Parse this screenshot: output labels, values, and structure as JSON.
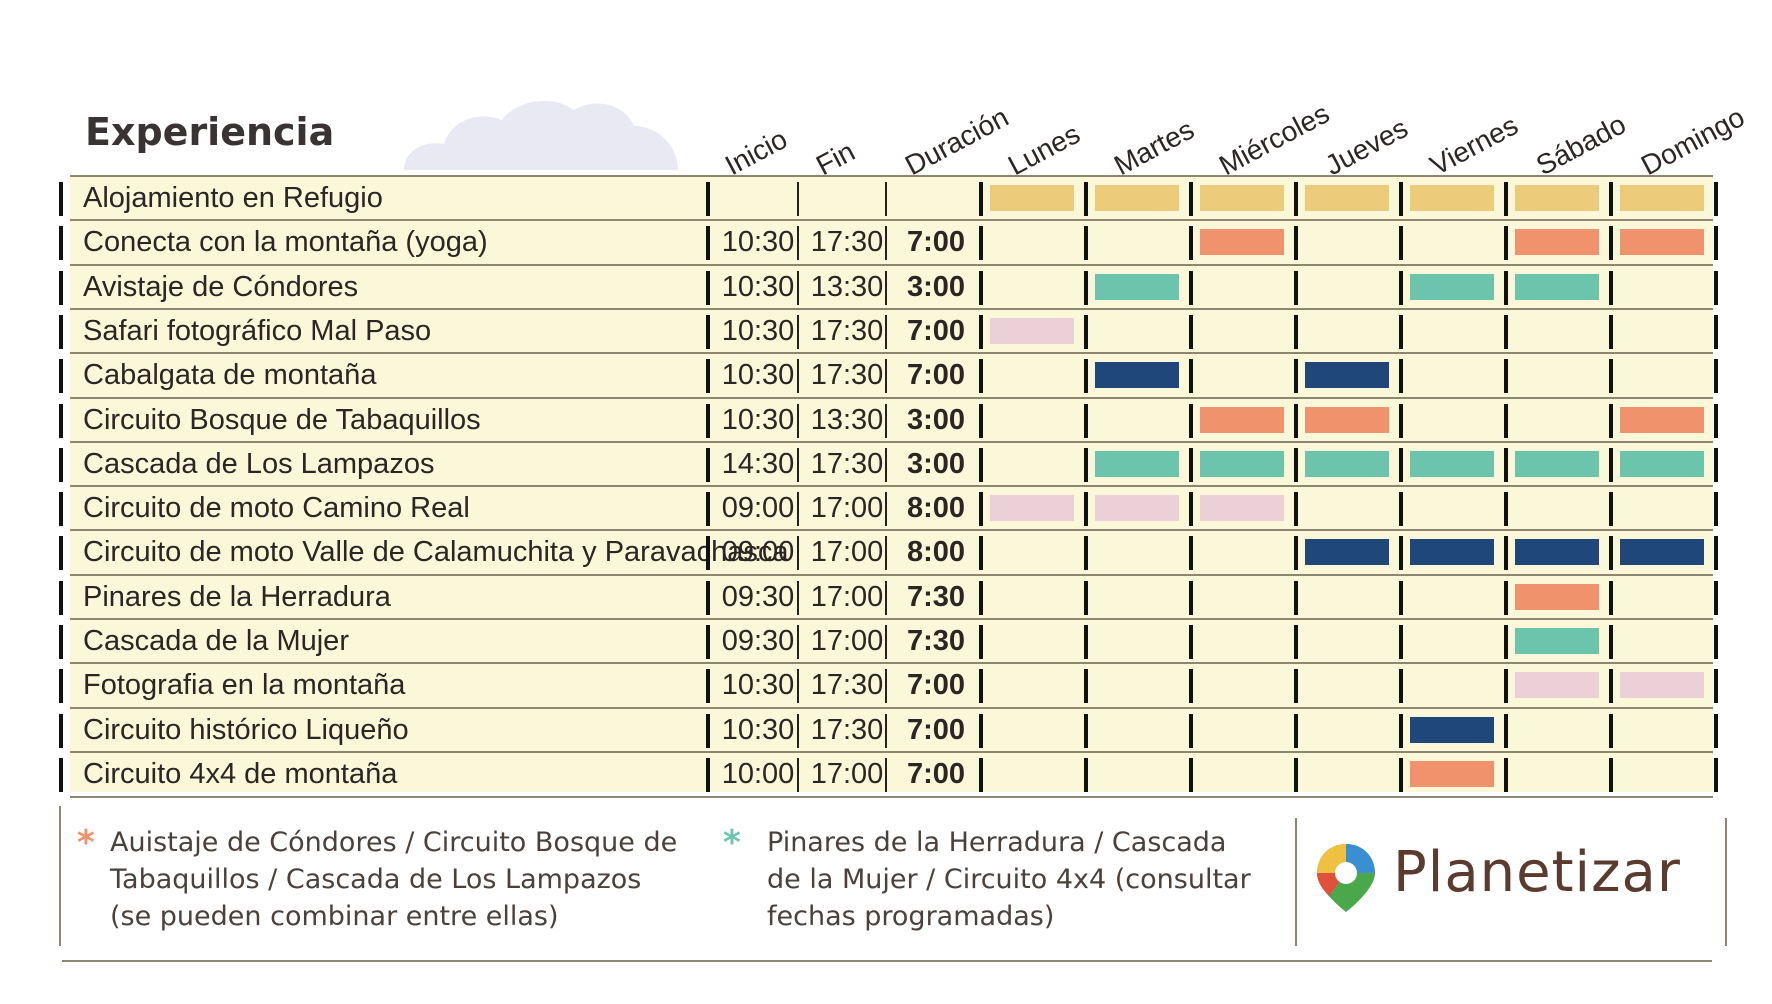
{
  "header": {
    "title": "Experiencia",
    "columns": [
      "Inicio",
      "Fin",
      "Duración"
    ],
    "days": [
      "Lunes",
      "Martes",
      "Miércoles",
      "Jueves",
      "Viernes",
      "Sábado",
      "Domingo"
    ]
  },
  "colors": {
    "yellow": "#eccb7a",
    "orange": "#f0926b",
    "teal": "#6cc4ad",
    "navy": "#1f477a",
    "pink": "#ecd0d7",
    "table_bg": "#fbf7d9"
  },
  "rows": [
    {
      "name": "Alojamiento en Refugio",
      "start": "",
      "end": "",
      "duration": "",
      "days": [
        "yellow",
        "yellow",
        "yellow",
        "yellow",
        "yellow",
        "yellow",
        "yellow"
      ]
    },
    {
      "name": "Conecta con la montaña (yoga)",
      "start": "10:30",
      "end": "17:30",
      "duration": "7:00",
      "days": [
        "",
        "",
        "orange",
        "",
        "",
        "orange",
        "orange"
      ]
    },
    {
      "name": "Avistaje de Cóndores",
      "start": "10:30",
      "end": "13:30",
      "duration": "3:00",
      "days": [
        "",
        "teal",
        "",
        "",
        "teal",
        "teal",
        ""
      ]
    },
    {
      "name": "Safari fotográfico Mal Paso",
      "start": "10:30",
      "end": "17:30",
      "duration": "7:00",
      "days": [
        "pink",
        "",
        "",
        "",
        "",
        "",
        ""
      ]
    },
    {
      "name": "Cabalgata de montaña",
      "start": "10:30",
      "end": "17:30",
      "duration": "7:00",
      "days": [
        "",
        "navy",
        "",
        "navy",
        "",
        "",
        ""
      ]
    },
    {
      "name": "Circuito Bosque de Tabaquillos",
      "start": "10:30",
      "end": "13:30",
      "duration": "3:00",
      "days": [
        "",
        "",
        "orange",
        "orange",
        "",
        "",
        "orange"
      ]
    },
    {
      "name": "Cascada de Los Lampazos",
      "start": "14:30",
      "end": "17:30",
      "duration": "3:00",
      "days": [
        "",
        "teal",
        "teal",
        "teal",
        "teal",
        "teal",
        "teal"
      ]
    },
    {
      "name": "Circuito de moto Camino Real",
      "start": "09:00",
      "end": "17:00",
      "duration": "8:00",
      "days": [
        "pink",
        "pink",
        "pink",
        "",
        "",
        "",
        ""
      ]
    },
    {
      "name": "Circuito de moto Valle de Calamuchita y Paravachasca",
      "start": "09:00",
      "end": "17:00",
      "duration": "8:00",
      "days": [
        "",
        "",
        "",
        "navy",
        "navy",
        "navy",
        "navy"
      ]
    },
    {
      "name": "Pinares de la Herradura",
      "start": "09:30",
      "end": "17:00",
      "duration": "7:30",
      "days": [
        "",
        "",
        "",
        "",
        "",
        "orange",
        ""
      ]
    },
    {
      "name": "Cascada de la Mujer",
      "start": "09:30",
      "end": "17:00",
      "duration": "7:30",
      "days": [
        "",
        "",
        "",
        "",
        "",
        "teal",
        ""
      ]
    },
    {
      "name": "Fotografia en la montaña",
      "start": "10:30",
      "end": "17:30",
      "duration": "7:00",
      "days": [
        "",
        "",
        "",
        "",
        "",
        "pink",
        "pink"
      ]
    },
    {
      "name": "Circuito histórico Liqueño",
      "start": "10:30",
      "end": "17:30",
      "duration": "7:00",
      "days": [
        "",
        "",
        "",
        "",
        "navy",
        "",
        ""
      ]
    },
    {
      "name": "Circuito 4x4 de montaña",
      "start": "10:00",
      "end": "17:00",
      "duration": "7:00",
      "days": [
        "",
        "",
        "",
        "",
        "orange",
        "",
        ""
      ]
    }
  ],
  "footer": {
    "note1": {
      "star": "*",
      "star_color": "#f0926b",
      "lines": [
        "Auistaje de Cóndores / Circuito Bosque de",
        "Tabaquillos / Cascada de Los Lampazos",
        "(se pueden combinar entre ellas)"
      ]
    },
    "note2": {
      "star": "*",
      "star_color": "#6cc4ad",
      "lines": [
        "Pinares de la Herradura / Cascada",
        "de la Mujer / Circuito 4x4 (consultar",
        "fechas programadas)"
      ]
    },
    "brand": "Planetizar",
    "logo_icon": "location-pin-icon"
  }
}
